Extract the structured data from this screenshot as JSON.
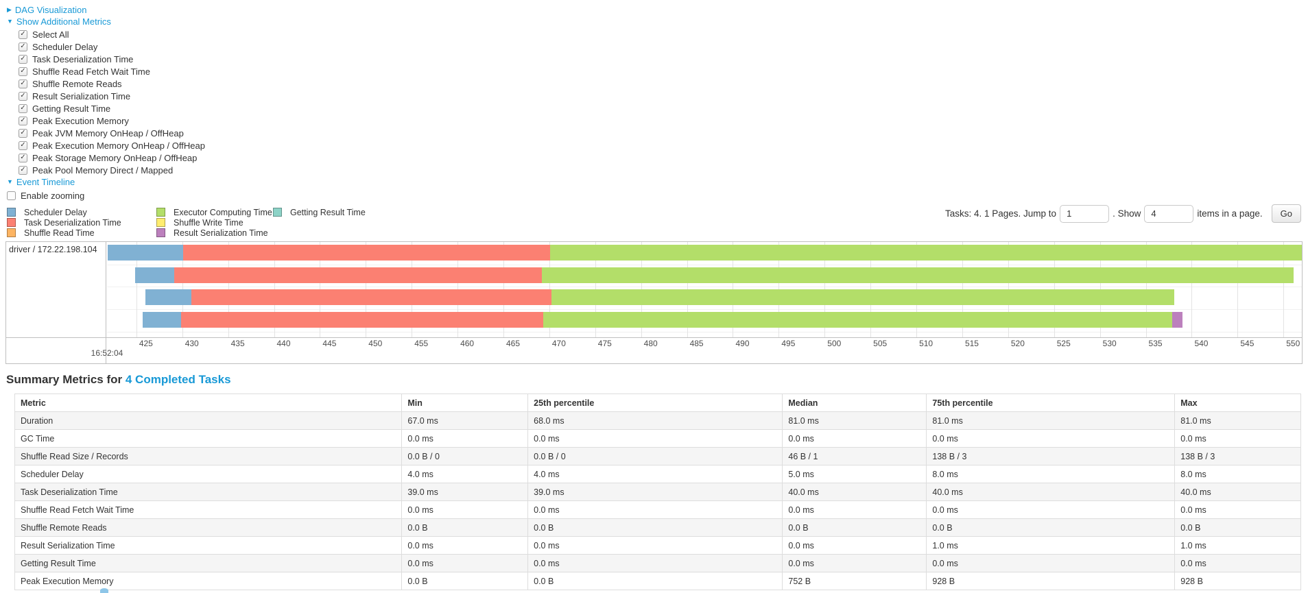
{
  "colors": {
    "scheduler_delay": "#80B1D3",
    "task_deserialization": "#FB8072",
    "shuffle_read": "#FDB462",
    "executor_computing": "#B3DE69",
    "shuffle_write": "#FFED6F",
    "result_serialization": "#BC80BD",
    "getting_result": "#8DD3C7",
    "link": "#1899D6",
    "chart_border": "#bfbfbf",
    "gridline": "#e3e3e3"
  },
  "sections": {
    "dag": {
      "label": "DAG Visualization",
      "arrow": "▶",
      "expanded": false
    },
    "metrics": {
      "label": "Show Additional Metrics",
      "arrow": "▼",
      "expanded": true
    },
    "timeline": {
      "label": "Event Timeline",
      "arrow": "▼",
      "expanded": true
    }
  },
  "metrics_checkboxes": [
    {
      "label": "Select All",
      "checked": true
    },
    {
      "label": "Scheduler Delay",
      "checked": true
    },
    {
      "label": "Task Deserialization Time",
      "checked": true
    },
    {
      "label": "Shuffle Read Fetch Wait Time",
      "checked": true
    },
    {
      "label": "Shuffle Remote Reads",
      "checked": true
    },
    {
      "label": "Result Serialization Time",
      "checked": true
    },
    {
      "label": "Getting Result Time",
      "checked": true
    },
    {
      "label": "Peak Execution Memory",
      "checked": true
    },
    {
      "label": "Peak JVM Memory OnHeap / OffHeap",
      "checked": true
    },
    {
      "label": "Peak Execution Memory OnHeap / OffHeap",
      "checked": true
    },
    {
      "label": "Peak Storage Memory OnHeap / OffHeap",
      "checked": true
    },
    {
      "label": "Peak Pool Memory Direct / Mapped",
      "checked": true
    }
  ],
  "enable_zooming": {
    "label": "Enable zooming",
    "checked": false
  },
  "legend": {
    "columns": [
      [
        {
          "label": "Scheduler Delay",
          "color": "scheduler_delay"
        },
        {
          "label": "Task Deserialization Time",
          "color": "task_deserialization"
        },
        {
          "label": "Shuffle Read Time",
          "color": "shuffle_read"
        }
      ],
      [
        {
          "label": "Executor Computing Time",
          "color": "executor_computing"
        },
        {
          "label": "Shuffle Write Time",
          "color": "shuffle_write"
        },
        {
          "label": "Result Serialization Time",
          "color": "result_serialization"
        }
      ],
      [
        {
          "label": "Getting Result Time",
          "color": "getting_result"
        }
      ]
    ]
  },
  "pagination": {
    "tasks_text": "Tasks: 4. 1 Pages. Jump to",
    "jump_value": "1",
    "show_text": ". Show",
    "show_value": "4",
    "items_text": "items in a page.",
    "go_label": "Go"
  },
  "chart_data": {
    "type": "timeline",
    "group_label": "driver / 172.22.198.104",
    "axis": {
      "unit": "ms",
      "major_label": "16:52:04",
      "tick_start": 425,
      "tick_end": 550,
      "tick_step": 5,
      "range_min": 421.8,
      "range_max": 552.0
    },
    "tasks": [
      {
        "segments": [
          {
            "metric": "Scheduler Delay",
            "color": "scheduler_delay",
            "start": 421.9,
            "end": 430.1
          },
          {
            "metric": "Task Deserialization Time",
            "color": "task_deserialization",
            "start": 430.1,
            "end": 470.1
          },
          {
            "metric": "Executor Computing Time",
            "color": "executor_computing",
            "start": 470.1,
            "end": 552.0
          }
        ]
      },
      {
        "segments": [
          {
            "metric": "Scheduler Delay",
            "color": "scheduler_delay",
            "start": 424.9,
            "end": 429.1
          },
          {
            "metric": "Task Deserialization Time",
            "color": "task_deserialization",
            "start": 429.1,
            "end": 469.2
          },
          {
            "metric": "Executor Computing Time",
            "color": "executor_computing",
            "start": 469.2,
            "end": 551.1
          }
        ]
      },
      {
        "segments": [
          {
            "metric": "Scheduler Delay",
            "color": "scheduler_delay",
            "start": 426.0,
            "end": 431.0
          },
          {
            "metric": "Task Deserialization Time",
            "color": "task_deserialization",
            "start": 431.0,
            "end": 470.2
          },
          {
            "metric": "Executor Computing Time",
            "color": "executor_computing",
            "start": 470.2,
            "end": 538.1
          }
        ]
      },
      {
        "segments": [
          {
            "metric": "Scheduler Delay",
            "color": "scheduler_delay",
            "start": 425.7,
            "end": 429.9
          },
          {
            "metric": "Task Deserialization Time",
            "color": "task_deserialization",
            "start": 429.9,
            "end": 469.3
          },
          {
            "metric": "Executor Computing Time",
            "color": "executor_computing",
            "start": 469.3,
            "end": 537.9
          },
          {
            "metric": "Result Serialization Time",
            "color": "result_serialization",
            "start": 537.9,
            "end": 539.0
          }
        ]
      }
    ]
  },
  "summary": {
    "title_prefix": "Summary Metrics for",
    "title_link": "4 Completed Tasks",
    "table": {
      "headers": [
        "Metric",
        "Min",
        "25th percentile",
        "Median",
        "75th percentile",
        "Max"
      ],
      "col_widths_pct": [
        30.1,
        9.8,
        19.8,
        11.2,
        19.3,
        9.8
      ],
      "rows": [
        {
          "metric": "Duration",
          "values": [
            "67.0 ms",
            "68.0 ms",
            "81.0 ms",
            "81.0 ms",
            "81.0 ms"
          ]
        },
        {
          "metric": "GC Time",
          "values": [
            "0.0 ms",
            "0.0 ms",
            "0.0 ms",
            "0.0 ms",
            "0.0 ms"
          ]
        },
        {
          "metric": "Shuffle Read Size / Records",
          "values": [
            "0.0 B / 0",
            "0.0 B / 0",
            "46 B / 1",
            "138 B / 3",
            "138 B / 3"
          ]
        },
        {
          "metric": "Scheduler Delay",
          "values": [
            "4.0 ms",
            "4.0 ms",
            "5.0 ms",
            "8.0 ms",
            "8.0 ms"
          ]
        },
        {
          "metric": "Task Deserialization Time",
          "values": [
            "39.0 ms",
            "39.0 ms",
            "40.0 ms",
            "40.0 ms",
            "40.0 ms"
          ]
        },
        {
          "metric": "Shuffle Read Fetch Wait Time",
          "values": [
            "0.0 ms",
            "0.0 ms",
            "0.0 ms",
            "0.0 ms",
            "0.0 ms"
          ]
        },
        {
          "metric": "Shuffle Remote Reads",
          "values": [
            "0.0 B",
            "0.0 B",
            "0.0 B",
            "0.0 B",
            "0.0 B"
          ]
        },
        {
          "metric": "Result Serialization Time",
          "values": [
            "0.0 ms",
            "0.0 ms",
            "0.0 ms",
            "1.0 ms",
            "1.0 ms"
          ]
        },
        {
          "metric": "Getting Result Time",
          "values": [
            "0.0 ms",
            "0.0 ms",
            "0.0 ms",
            "0.0 ms",
            "0.0 ms"
          ]
        },
        {
          "metric": "Peak Execution Memory",
          "values": [
            "0.0 B",
            "0.0 B",
            "752 B",
            "928 B",
            "928 B"
          ]
        }
      ]
    }
  }
}
